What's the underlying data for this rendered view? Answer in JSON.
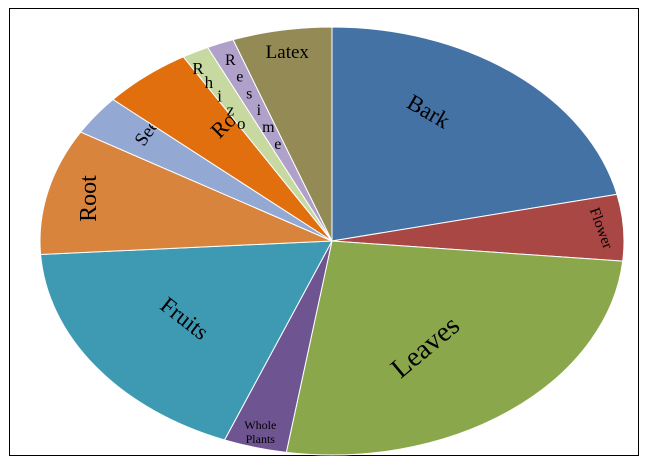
{
  "chart_data": {
    "type": "pie",
    "title": "",
    "legend": "none",
    "slices": [
      {
        "label": "Bark",
        "value": 21.5,
        "color": "#4472A5"
      },
      {
        "label": "Flower",
        "value": 5.0,
        "color": "#A84744"
      },
      {
        "label": "Leaves",
        "value": 26.0,
        "color": "#8AA84B"
      },
      {
        "label": "Whole Plants",
        "label_lines": [
          "Whole",
          "Plants"
        ],
        "value": 3.5,
        "color": "#6E5592"
      },
      {
        "label": "Fruits",
        "value": 18.0,
        "color": "#3E9AB2"
      },
      {
        "label": "Root",
        "value": 9.5,
        "color": "#D9843D"
      },
      {
        "label": "Seed",
        "value": 3.0,
        "color": "#93A9D4"
      },
      {
        "label": "Root",
        "value": 5.0,
        "color": "#E16F0E"
      },
      {
        "label": "Rhizo",
        "label_letters": [
          "R",
          "h",
          "i",
          "z",
          "o"
        ],
        "value": 1.5,
        "color": "#C7D9A0"
      },
      {
        "label": "Resime",
        "label_letters": [
          "R",
          "e",
          "s",
          "i",
          "m",
          "e"
        ],
        "value": 1.5,
        "color": "#AFA1C9"
      },
      {
        "label": "Latex",
        "value": 5.5,
        "color": "#938A55"
      }
    ]
  }
}
